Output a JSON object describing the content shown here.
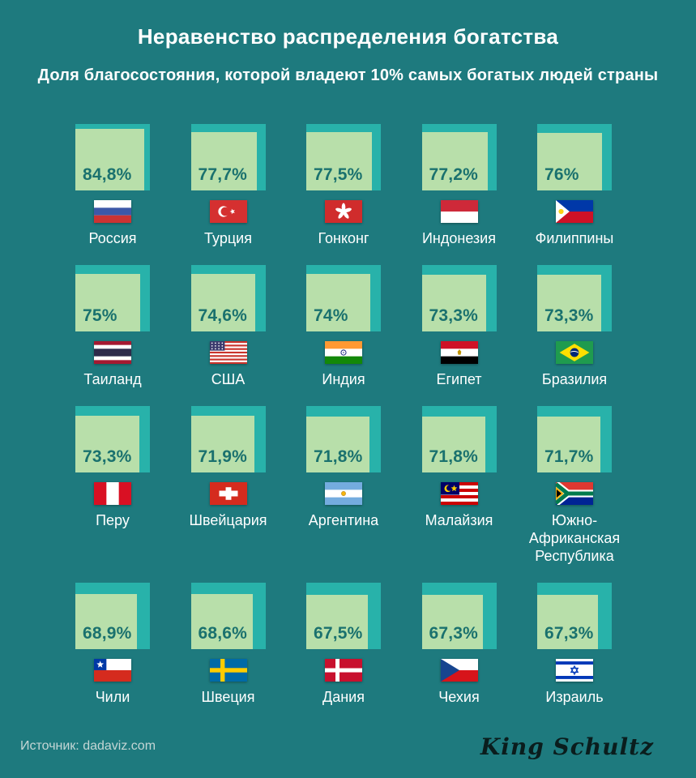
{
  "header": {
    "title": "Неравенство распределения богатства",
    "subtitle": "Доля благосостояния, которой владеют 10% самых богатых людей страны"
  },
  "footer": {
    "source": "Источник: dadaviz.com",
    "brand": "King Schultz"
  },
  "colors": {
    "background": "#1e7a7e",
    "square_back_accent": "#28b2aa",
    "square_fill": "#b8dfaa",
    "percent_text": "#1a716e",
    "label_text": "#ffffff",
    "source_text": "#c4d6d5"
  },
  "countries": [
    {
      "name": "Россия",
      "flag": "russia",
      "value": 84.8,
      "percent_label": "84,8%"
    },
    {
      "name": "Турция",
      "flag": "turkey",
      "value": 77.7,
      "percent_label": "77,7%"
    },
    {
      "name": "Гонконг",
      "flag": "hong-kong",
      "value": 77.5,
      "percent_label": "77,5%"
    },
    {
      "name": "Индонезия",
      "flag": "indonesia",
      "value": 77.2,
      "percent_label": "77,2%"
    },
    {
      "name": "Филиппины",
      "flag": "philippines",
      "value": 76,
      "percent_label": "76%"
    },
    {
      "name": "Таиланд",
      "flag": "thailand",
      "value": 75,
      "percent_label": "75%"
    },
    {
      "name": "США",
      "flag": "usa",
      "value": 74.6,
      "percent_label": "74,6%"
    },
    {
      "name": "Индия",
      "flag": "india",
      "value": 74,
      "percent_label": "74%"
    },
    {
      "name": "Египет",
      "flag": "egypt",
      "value": 73.3,
      "percent_label": "73,3%"
    },
    {
      "name": "Бразилия",
      "flag": "brazil",
      "value": 73.3,
      "percent_label": "73,3%"
    },
    {
      "name": "Перу",
      "flag": "peru",
      "value": 73.3,
      "percent_label": "73,3%"
    },
    {
      "name": "Швейцария",
      "flag": "switzerland",
      "value": 71.9,
      "percent_label": "71,9%"
    },
    {
      "name": "Аргентина",
      "flag": "argentina",
      "value": 71.8,
      "percent_label": "71,8%"
    },
    {
      "name": "Малайзия",
      "flag": "malaysia",
      "value": 71.8,
      "percent_label": "71,8%"
    },
    {
      "name": "Южно-\nАфриканская\nРеспублика",
      "flag": "south-africa",
      "value": 71.7,
      "percent_label": "71,7%"
    },
    {
      "name": "Чили",
      "flag": "chile",
      "value": 68.9,
      "percent_label": "68,9%"
    },
    {
      "name": "Швеция",
      "flag": "sweden",
      "value": 68.6,
      "percent_label": "68,6%"
    },
    {
      "name": "Дания",
      "flag": "denmark",
      "value": 67.5,
      "percent_label": "67,5%"
    },
    {
      "name": "Чехия",
      "flag": "czech-republic",
      "value": 67.3,
      "percent_label": "67,3%"
    },
    {
      "name": "Израиль",
      "flag": "israel",
      "value": 67.3,
      "percent_label": "67,3%"
    }
  ],
  "chart_data": {
    "type": "bar",
    "title": "Неравенство распределения богатства",
    "subtitle": "Доля благосостояния, которой владеют 10% самых богатых людей страны",
    "unit": "%",
    "categories": [
      "Россия",
      "Турция",
      "Гонконг",
      "Индонезия",
      "Филиппины",
      "Таиланд",
      "США",
      "Индия",
      "Египет",
      "Бразилия",
      "Перу",
      "Швейцария",
      "Аргентина",
      "Малайзия",
      "Южно-Африканская Республика",
      "Чили",
      "Швеция",
      "Дания",
      "Чехия",
      "Израиль"
    ],
    "values": [
      84.8,
      77.7,
      77.5,
      77.2,
      76,
      75,
      74.6,
      74,
      73.3,
      73.3,
      73.3,
      71.9,
      71.8,
      71.8,
      71.7,
      68.9,
      68.6,
      67.5,
      67.3,
      67.3
    ],
    "value_labels": [
      "84,8%",
      "77,7%",
      "77,5%",
      "77,2%",
      "76%",
      "75%",
      "74,6%",
      "74%",
      "73,3%",
      "73,3%",
      "73,3%",
      "71,9%",
      "71,8%",
      "71,8%",
      "71,7%",
      "68,9%",
      "68,6%",
      "67,5%",
      "67,3%",
      "67,3%"
    ],
    "layout": "5x4 grid of squares, square area proportional to value, flag and country name under each square",
    "source": "Источник: dadaviz.com"
  }
}
